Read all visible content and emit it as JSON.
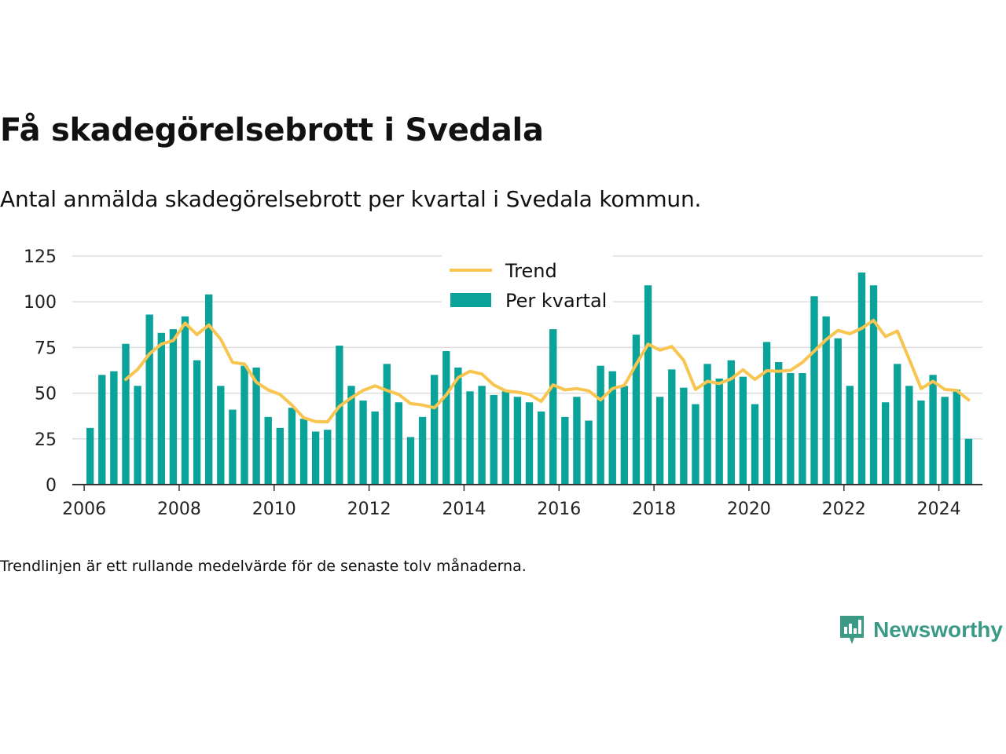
{
  "title": "Få skadegörelsebrott i Svedala",
  "subtitle": "Antal anmälda skadegörelsebrott per kvartal i Svedala kommun.",
  "footnote": "Trendlinjen är ett rullande medelvärde för de senaste tolv månaderna.",
  "brand": "Newsworthy",
  "colors": {
    "bar": "#0aa39a",
    "trend": "#f8c550",
    "grid": "#dddddd",
    "axis": "#333333",
    "brand": "#3a9a86"
  },
  "chart_data": {
    "type": "bar",
    "xlabel": "",
    "ylabel": "",
    "ylim": [
      0,
      125
    ],
    "yticks": [
      0,
      25,
      50,
      75,
      100,
      125
    ],
    "xticks": [
      "2006",
      "2008",
      "2010",
      "2012",
      "2014",
      "2016",
      "2018",
      "2020",
      "2022",
      "2024"
    ],
    "xlim": [
      "2005-10",
      "2024-12"
    ],
    "grid": true,
    "legend_position": "top-center",
    "x": [
      "2006-Q1",
      "2006-Q2",
      "2006-Q3",
      "2006-Q4",
      "2007-Q1",
      "2007-Q2",
      "2007-Q3",
      "2007-Q4",
      "2008-Q1",
      "2008-Q2",
      "2008-Q3",
      "2008-Q4",
      "2009-Q1",
      "2009-Q2",
      "2009-Q3",
      "2009-Q4",
      "2010-Q1",
      "2010-Q2",
      "2010-Q3",
      "2010-Q4",
      "2011-Q1",
      "2011-Q2",
      "2011-Q3",
      "2011-Q4",
      "2012-Q1",
      "2012-Q2",
      "2012-Q3",
      "2012-Q4",
      "2013-Q1",
      "2013-Q2",
      "2013-Q3",
      "2013-Q4",
      "2014-Q1",
      "2014-Q2",
      "2014-Q3",
      "2014-Q4",
      "2015-Q1",
      "2015-Q2",
      "2015-Q3",
      "2015-Q4",
      "2016-Q1",
      "2016-Q2",
      "2016-Q3",
      "2016-Q4",
      "2017-Q1",
      "2017-Q2",
      "2017-Q3",
      "2017-Q4",
      "2018-Q1",
      "2018-Q2",
      "2018-Q3",
      "2018-Q4",
      "2019-Q1",
      "2019-Q2",
      "2019-Q3",
      "2019-Q4",
      "2020-Q1",
      "2020-Q2",
      "2020-Q3",
      "2020-Q4",
      "2021-Q1",
      "2021-Q2",
      "2021-Q3",
      "2021-Q4",
      "2022-Q1",
      "2022-Q2",
      "2022-Q3",
      "2022-Q4",
      "2023-Q1",
      "2023-Q2",
      "2023-Q3",
      "2023-Q4",
      "2024-Q1",
      "2024-Q2",
      "2024-Q3"
    ],
    "series": [
      {
        "name": "Per kvartal",
        "type": "bar",
        "values": [
          31,
          60,
          62,
          77,
          54,
          93,
          83,
          85,
          92,
          68,
          104,
          54,
          41,
          65,
          64,
          37,
          31,
          42,
          36,
          29,
          30,
          76,
          54,
          46,
          40,
          66,
          45,
          26,
          37,
          60,
          73,
          64,
          51,
          54,
          49,
          51,
          48,
          45,
          40,
          85,
          37,
          48,
          35,
          65,
          62,
          54,
          82,
          109,
          48,
          63,
          53,
          44,
          66,
          58,
          68,
          59,
          44,
          78,
          67,
          61,
          61,
          103,
          92,
          80,
          54,
          116,
          109,
          45,
          66,
          54,
          46,
          60,
          48,
          52,
          25
        ]
      },
      {
        "name": "Trend",
        "type": "line",
        "values": [
          null,
          null,
          null,
          57.5,
          63.0,
          71.5,
          76.8,
          78.8,
          88.3,
          82.0,
          87.3,
          79.5,
          66.8,
          66.0,
          56.0,
          51.8,
          49.3,
          43.5,
          36.5,
          34.5,
          34.3,
          42.8,
          47.5,
          51.5,
          54.0,
          51.5,
          49.3,
          44.3,
          43.5,
          42.0,
          49.0,
          58.5,
          62.0,
          60.5,
          54.5,
          51.3,
          50.5,
          49.3,
          45.5,
          54.5,
          51.8,
          52.5,
          51.3,
          46.3,
          52.5,
          54.3,
          65.8,
          76.8,
          73.5,
          75.5,
          68.0,
          52.0,
          56.5,
          55.3,
          57.8,
          62.8,
          57.5,
          62.3,
          62.0,
          62.5,
          66.8,
          73.0,
          79.3,
          84.3,
          82.5,
          85.5,
          89.8,
          81.0,
          84.0,
          68.5,
          52.5,
          56.5,
          52.0,
          51.5,
          46.3
        ]
      }
    ]
  }
}
